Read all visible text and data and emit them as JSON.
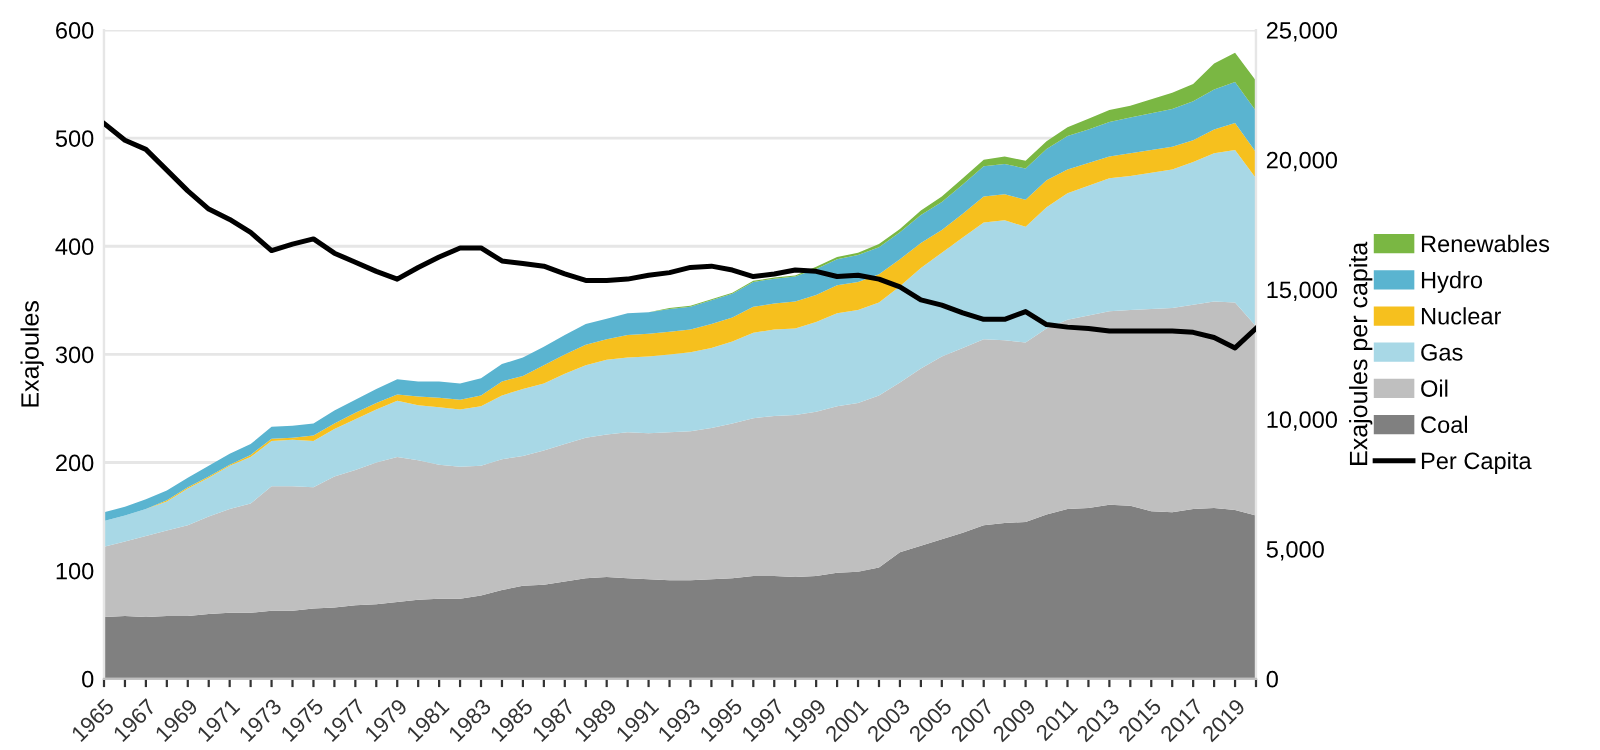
{
  "chart_data": {
    "type": "area",
    "stacked": true,
    "ylabel": "Exajoules",
    "y2label": "Exajoules per capita",
    "categories": [
      "1965",
      null,
      "1967",
      null,
      "1969",
      null,
      "1971",
      null,
      "1973",
      null,
      "1975",
      null,
      "1977",
      null,
      "1979",
      null,
      "1981",
      null,
      "1983",
      null,
      "1985",
      null,
      "1987",
      null,
      "1989",
      null,
      "1991",
      null,
      "1993",
      null,
      "1995",
      null,
      "1997",
      null,
      "1999",
      null,
      "2001",
      null,
      "2003",
      null,
      "2005",
      null,
      "2007",
      null,
      "2009",
      null,
      "2011",
      null,
      "2013",
      null,
      "2015",
      null,
      "2017",
      null,
      "2019",
      null
    ],
    "series": [
      {
        "name": "Coal",
        "color": "#808080",
        "values": [
          57,
          58,
          57,
          58,
          58,
          60,
          61,
          61,
          63,
          63,
          65,
          66,
          68,
          69,
          71,
          73,
          74,
          74,
          77,
          82,
          86,
          87,
          90,
          93,
          94,
          93,
          92,
          91,
          91,
          92,
          93,
          95,
          95,
          94,
          95,
          98,
          99,
          103,
          117,
          123,
          129,
          135,
          142,
          144,
          145,
          152,
          157,
          158,
          161,
          160,
          155,
          154,
          157,
          158,
          156,
          151
        ]
      },
      {
        "name": "Oil",
        "color": "#bfbfbf",
        "values": [
          65,
          69,
          75,
          79,
          84,
          90,
          96,
          101,
          115,
          115,
          112,
          121,
          125,
          131,
          134,
          129,
          124,
          122,
          120,
          121,
          120,
          124,
          127,
          130,
          132,
          135,
          135,
          137,
          138,
          140,
          143,
          146,
          148,
          150,
          152,
          154,
          156,
          159,
          157,
          164,
          169,
          171,
          172,
          169,
          166,
          172,
          175,
          178,
          179,
          181,
          187,
          189,
          189,
          191,
          192,
          175
        ]
      },
      {
        "name": "Gas",
        "color": "#a8d8e6",
        "values": [
          24,
          24,
          25,
          27,
          34,
          36,
          40,
          43,
          42,
          43,
          43,
          44,
          47,
          49,
          52,
          51,
          53,
          53,
          55,
          59,
          62,
          62,
          65,
          67,
          69,
          69,
          71,
          72,
          73,
          74,
          76,
          79,
          80,
          80,
          83,
          86,
          86,
          86,
          89,
          93,
          96,
          102,
          108,
          111,
          107,
          112,
          117,
          120,
          123,
          124,
          126,
          128,
          132,
          137,
          141,
          137
        ]
      },
      {
        "name": "Nuclear",
        "color": "#f6c01e",
        "values": [
          0,
          0,
          0,
          1,
          1,
          1,
          1,
          2,
          2,
          2,
          5,
          5,
          6,
          6,
          6,
          8,
          9,
          9,
          10,
          13,
          12,
          17,
          18,
          19,
          19,
          21,
          21,
          21,
          21,
          22,
          22,
          24,
          24,
          25,
          25,
          26,
          26,
          26,
          25,
          23,
          21,
          22,
          24,
          24,
          25,
          25,
          22,
          21,
          20,
          21,
          21,
          21,
          20,
          22,
          25,
          24
        ]
      },
      {
        "name": "Hydro",
        "color": "#5ab4d0",
        "values": [
          8,
          8,
          9,
          9,
          9,
          10,
          10,
          10,
          11,
          11,
          11,
          12,
          12,
          13,
          14,
          14,
          15,
          15,
          16,
          16,
          17,
          17,
          18,
          19,
          19,
          20,
          20,
          21,
          21,
          22,
          22,
          23,
          23,
          23,
          24,
          24,
          25,
          25,
          25,
          26,
          26,
          27,
          28,
          28,
          29,
          29,
          31,
          31,
          32,
          33,
          34,
          35,
          36,
          37,
          38,
          38
        ]
      },
      {
        "name": "Renewables",
        "color": "#7ab743",
        "values": [
          0,
          0,
          0,
          0,
          0,
          0,
          0,
          0,
          0,
          0,
          0,
          0,
          0,
          0,
          0,
          0,
          0,
          0,
          0,
          0,
          0,
          0,
          0,
          0,
          0,
          0,
          0,
          1,
          1,
          1,
          1,
          1,
          1,
          1,
          2,
          2,
          2,
          3,
          3,
          4,
          5,
          6,
          6,
          7,
          7,
          7,
          8,
          10,
          11,
          11,
          13,
          15,
          16,
          24,
          27,
          28
        ]
      },
      {
        "name": "Per Capita",
        "type": "line",
        "axis": "y2",
        "color": "#000000",
        "values": [
          21400,
          20750,
          20400,
          19600,
          18800,
          18100,
          17700,
          17200,
          16500,
          16750,
          16950,
          16400,
          16050,
          15700,
          15400,
          15850,
          16250,
          16600,
          16600,
          16100,
          16000,
          15900,
          15600,
          15350,
          15350,
          15400,
          15550,
          15650,
          15850,
          15900,
          15750,
          15500,
          15600,
          15750,
          15700,
          15500,
          15550,
          15400,
          15100,
          14600,
          14400,
          14100,
          13850,
          13850,
          14150,
          13650,
          13550,
          13500,
          13400,
          13400,
          13400,
          13400,
          13350,
          13150,
          12750,
          13500
        ]
      }
    ],
    "ylim": [
      0,
      600
    ],
    "yticks": [
      0,
      100,
      200,
      300,
      400,
      500,
      600
    ],
    "y2lim": [
      0,
      25000
    ],
    "y2ticks": [
      0,
      {
        "value": 5000,
        "label": "5,000"
      },
      {
        "value": 10000,
        "label": "10,000"
      },
      {
        "value": 15000,
        "label": "15,000"
      },
      {
        "value": 20000,
        "label": "20,000"
      },
      {
        "value": 25000,
        "label": "25,000"
      }
    ],
    "grid": "y",
    "legend": "right",
    "line_style": "solid",
    "marker": "none"
  }
}
